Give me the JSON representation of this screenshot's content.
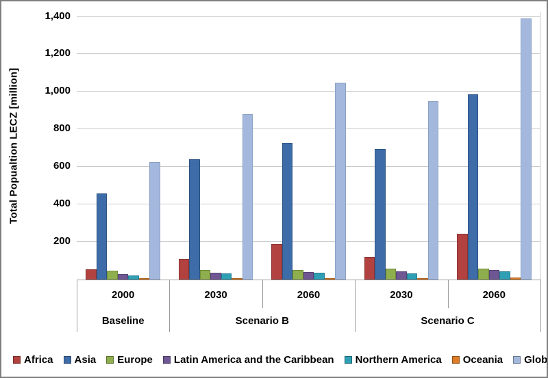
{
  "chart_data": {
    "type": "bar",
    "title": "",
    "ylabel": "Total Popualtion LECZ [million]",
    "xlabel": "",
    "ylim": [
      0,
      1400
    ],
    "grid": true,
    "legend_position": "bottom",
    "yticks": [
      {
        "value": 200,
        "label": "200"
      },
      {
        "value": 400,
        "label": "400"
      },
      {
        "value": 600,
        "label": "600"
      },
      {
        "value": 800,
        "label": "800"
      },
      {
        "value": 1000,
        "label": "1,000"
      },
      {
        "value": 1200,
        "label": "1,200"
      },
      {
        "value": 1400,
        "label": "1,400"
      }
    ],
    "categories": [
      "2000",
      "2030",
      "2060",
      "2030",
      "2060"
    ],
    "category_groups": [
      {
        "label": "Baseline",
        "span": 1
      },
      {
        "label": "Scenario B",
        "span": 2
      },
      {
        "label": "Scenario C",
        "span": 2
      }
    ],
    "series": [
      {
        "name": "Africa",
        "color": "#b2423f",
        "border": "#8c3432",
        "values": [
          55,
          110,
          190,
          120,
          245
        ]
      },
      {
        "name": "Asia",
        "color": "#3d6ca8",
        "border": "#2e5381",
        "values": [
          460,
          640,
          730,
          695,
          985
        ]
      },
      {
        "name": "Europe",
        "color": "#8fae4d",
        "border": "#6f8a3a",
        "values": [
          48,
          52,
          52,
          58,
          58
        ]
      },
      {
        "name": "Latin America and the Caribbean",
        "color": "#6f5794",
        "border": "#564375",
        "values": [
          30,
          38,
          40,
          43,
          52
        ]
      },
      {
        "name": "Northern America",
        "color": "#2e9fb4",
        "border": "#217a8b",
        "values": [
          22,
          32,
          36,
          32,
          43
        ]
      },
      {
        "name": "Oceania",
        "color": "#de7c28",
        "border": "#b05f14",
        "values": [
          5,
          6,
          8,
          5,
          10
        ]
      },
      {
        "name": "Global",
        "color": "#a3b8dc",
        "border": "#8aa2c6",
        "values": [
          625,
          880,
          1050,
          950,
          1390
        ]
      }
    ]
  }
}
